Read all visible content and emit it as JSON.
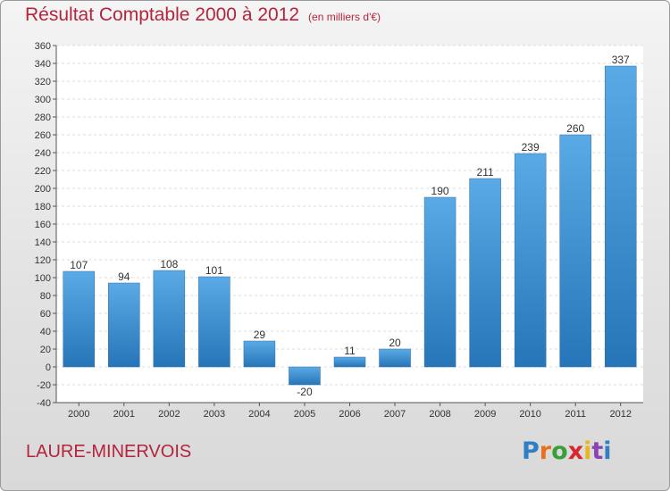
{
  "chart_data": {
    "type": "bar",
    "title": "Résultat Comptable 2000 à 2012",
    "subtitle": "(en milliers d'€)",
    "categories": [
      "2000",
      "2001",
      "2002",
      "2003",
      "2004",
      "2005",
      "2006",
      "2007",
      "2008",
      "2009",
      "2010",
      "2011",
      "2012"
    ],
    "values": [
      107,
      94,
      108,
      101,
      29,
      -20,
      11,
      20,
      190,
      211,
      239,
      260,
      337
    ],
    "ylim": [
      -40,
      360
    ],
    "yticks": [
      -40,
      -20,
      0,
      20,
      40,
      60,
      80,
      100,
      120,
      140,
      160,
      180,
      200,
      220,
      240,
      260,
      280,
      300,
      320,
      340,
      360
    ],
    "grid": true,
    "bar_color": "#3d8fd1"
  },
  "footer": {
    "commune": "LAURE-MINERVOIS",
    "brand": "Proxiti"
  },
  "colors": {
    "accent": "#b5243d",
    "brand_letters": [
      "#2f7fc6",
      "#e8701c",
      "#3a9e3a",
      "#d9262f",
      "#e8b71c",
      "#8a45b0",
      "#2f7fc6"
    ]
  }
}
